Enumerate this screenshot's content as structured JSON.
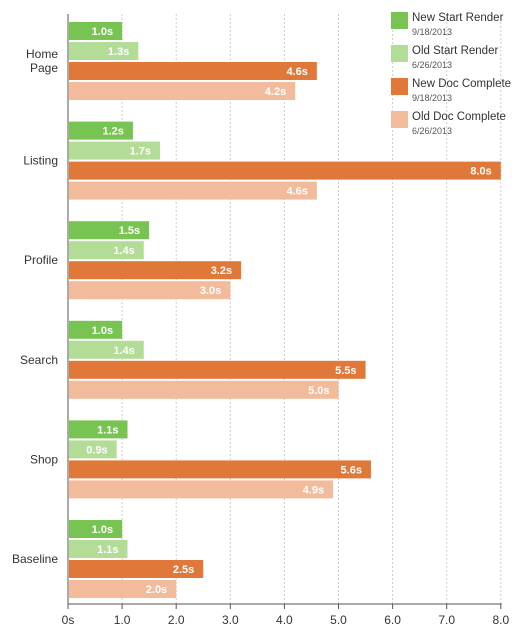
{
  "chart_data": {
    "type": "bar",
    "orientation": "horizontal",
    "categories": [
      [
        "Home",
        "Page"
      ],
      [
        "Listing"
      ],
      [
        "Profile"
      ],
      [
        "Search"
      ],
      [
        "Shop"
      ],
      [
        "Baseline"
      ]
    ],
    "series": [
      {
        "name": "New Start Render",
        "date": "9/18/2013",
        "color": "#78c452",
        "values": [
          1.0,
          1.2,
          1.5,
          1.0,
          1.1,
          1.0
        ],
        "labels": [
          "1.0s",
          "1.2s",
          "1.5s",
          "1.0s",
          "1.1s",
          "1.0s"
        ]
      },
      {
        "name": "Old Start Render",
        "date": "6/26/2013",
        "color": "#b3dc97",
        "values": [
          1.3,
          1.7,
          1.4,
          1.4,
          0.9,
          1.1
        ],
        "labels": [
          "1.3s",
          "1.7s",
          "1.4s",
          "1.4s",
          "0.9s",
          "1.1s"
        ]
      },
      {
        "name": "New Doc Complete",
        "date": "9/18/2013",
        "color": "#e0783a",
        "values": [
          4.6,
          8.0,
          3.2,
          5.5,
          5.6,
          2.5
        ],
        "labels": [
          "4.6s",
          "8.0s",
          "3.2s",
          "5.5s",
          "5.6s",
          "2.5s"
        ]
      },
      {
        "name": "Old Doc Complete",
        "date": "6/26/2013",
        "color": "#f2bb9c",
        "values": [
          4.2,
          4.6,
          3.0,
          5.0,
          4.9,
          2.0
        ],
        "labels": [
          "4.2s",
          "4.6s",
          "3.0s",
          "5.0s",
          "4.9s",
          "2.0s"
        ]
      }
    ],
    "xlim": [
      0,
      8
    ],
    "xticks": [
      "0s",
      "1.0",
      "2.0",
      "3.0",
      "4.0",
      "5.0",
      "6.0",
      "7.0",
      "8.0"
    ],
    "grid": "vertical dotted",
    "legend_position": "top-right",
    "axis_color": "#555555",
    "grid_color": "#cccccc"
  }
}
